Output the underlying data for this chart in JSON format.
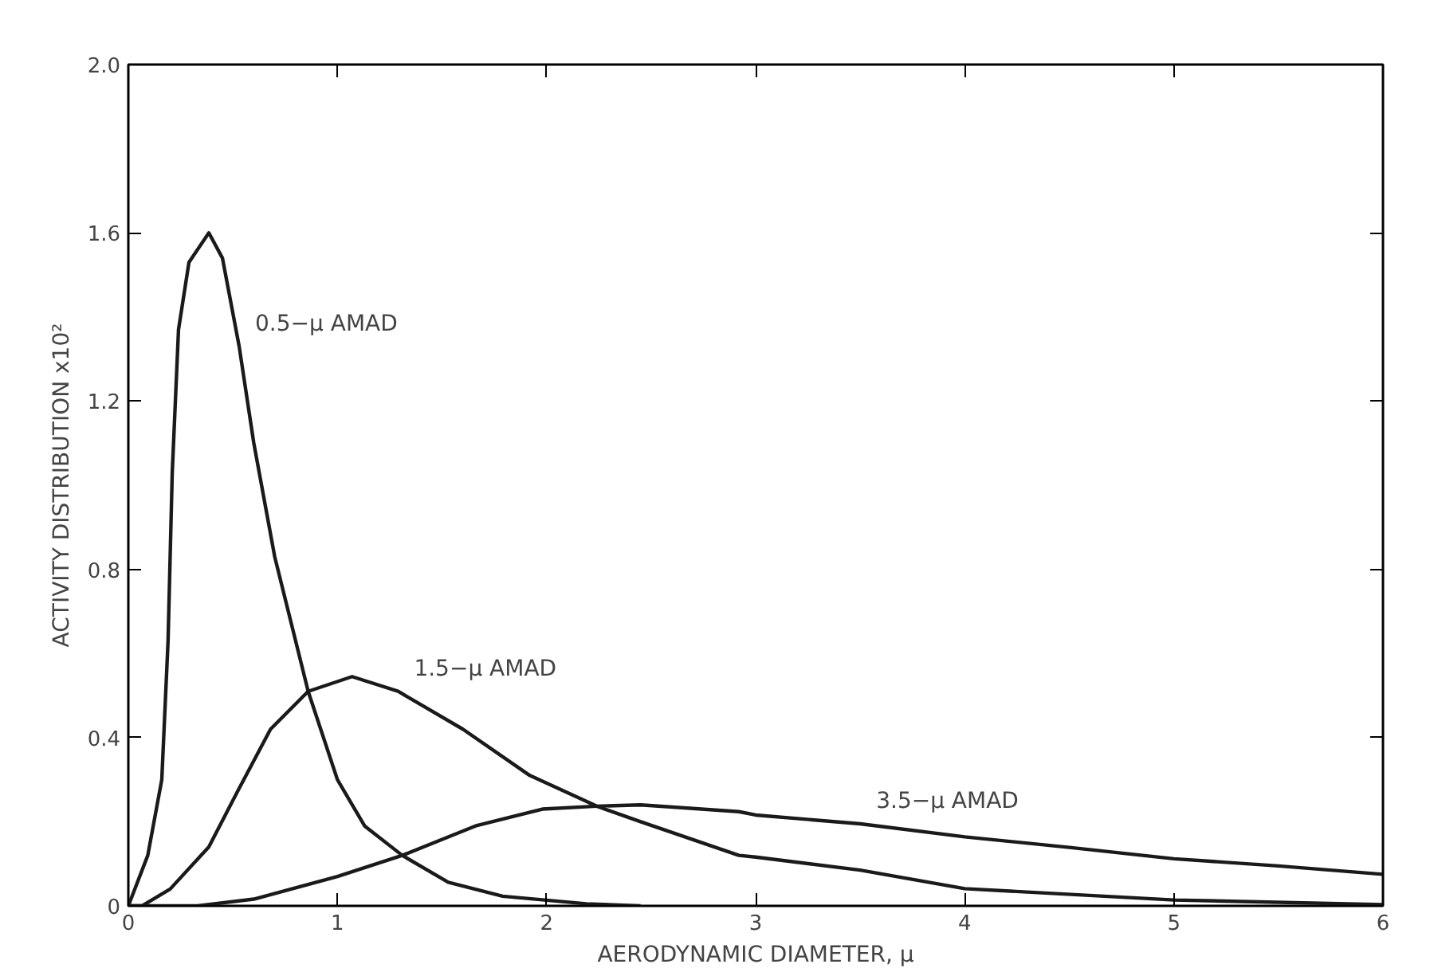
{
  "chart_data": {
    "type": "line",
    "xlabel": "AERODYNAMIC DIAMETER, μ",
    "ylabel": "ACTIVITY DISTRIBUTION x10²",
    "xlim": [
      0,
      6
    ],
    "ylim": [
      0,
      2.0
    ],
    "xticks": [
      0,
      1,
      2,
      3,
      4,
      5,
      6
    ],
    "yticks": [
      0,
      {
        "value": 0.4,
        "label": "0.4"
      },
      {
        "value": 0.8,
        "label": "0.8"
      },
      {
        "value": 1.2,
        "label": "1.2"
      },
      {
        "value": 1.6,
        "label": "1.6"
      },
      {
        "value": 2.0,
        "label": "2.0"
      }
    ],
    "grid": false,
    "marker": "none",
    "line_style": "solid",
    "series": [
      {
        "color": "#1a1a1a",
        "x": [
          0,
          0.093,
          0.16,
          0.19,
          0.21,
          0.24,
          0.29,
          0.385,
          0.45,
          0.53,
          0.6,
          0.7,
          0.86,
          1.0,
          1.13,
          1.31,
          1.53,
          1.79,
          2.19,
          2.45
        ],
        "values": [
          0,
          0.12,
          0.3,
          0.63,
          1.03,
          1.37,
          1.53,
          1.6,
          1.54,
          1.33,
          1.1,
          0.83,
          0.51,
          0.3,
          0.19,
          0.12,
          0.056,
          0.023,
          0.005,
          0
        ]
      },
      {
        "color": "#1a1a1a",
        "x": [
          0,
          0.066,
          0.2,
          0.385,
          0.52,
          0.68,
          0.86,
          1.07,
          1.29,
          1.6,
          1.92,
          2.24,
          2.45,
          2.92,
          3,
          3.5,
          4,
          5,
          6
        ],
        "values": [
          0,
          0,
          0.04,
          0.14,
          0.27,
          0.42,
          0.51,
          0.545,
          0.51,
          0.42,
          0.31,
          0.237,
          0.2,
          0.12,
          0.116,
          0.085,
          0.041,
          0.014,
          0.003
        ]
      },
      {
        "color": "#1a1a1a",
        "x": [
          0,
          0.33,
          0.6,
          1.0,
          1.31,
          1.66,
          1.98,
          2.24,
          2.45,
          2.92,
          3,
          3.5,
          4,
          4.5,
          5,
          5.5,
          6
        ],
        "values": [
          0,
          0,
          0.016,
          0.07,
          0.12,
          0.19,
          0.23,
          0.237,
          0.24,
          0.224,
          0.216,
          0.195,
          0.164,
          0.139,
          0.112,
          0.095,
          0.075
        ]
      }
    ],
    "annotations": [
      {
        "text": "0.5−μ AMAD",
        "x": 0.53,
        "y": 1.33
      },
      {
        "text": "1.5−μ AMAD",
        "x": 1.29,
        "y": 0.51
      },
      {
        "text": "3.5−μ AMAD",
        "x": 3.5,
        "y": 0.195
      }
    ]
  }
}
